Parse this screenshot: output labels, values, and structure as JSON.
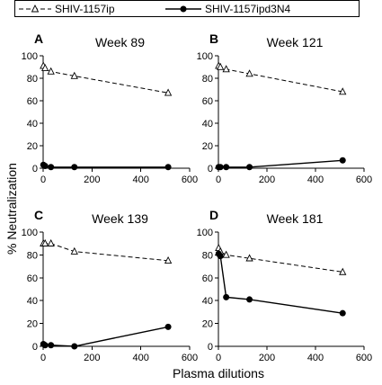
{
  "chart_data": {
    "type": "line",
    "legend": {
      "position": "top",
      "entries": [
        {
          "label": "SHIV-1157ip",
          "marker": "open-triangle",
          "line": "dashed"
        },
        {
          "label": "SHIV-1157ipd3N4",
          "marker": "filled-circle",
          "line": "solid"
        }
      ]
    },
    "xlabel": "Plasma dilutions",
    "ylabel": "% Neutralization",
    "xlim": [
      0,
      600
    ],
    "ylim": [
      0,
      100
    ],
    "xticks": [
      "0",
      "200",
      "400",
      "600"
    ],
    "yticks": [
      "0",
      "20",
      "40",
      "60",
      "80",
      "100"
    ],
    "panels": [
      {
        "letter": "A",
        "title": "Week 89",
        "series": [
          {
            "name": "SHIV-1157ip",
            "x": [
              1,
              8,
              32,
              128,
              512
            ],
            "y": [
              91,
              89,
              86,
              82,
              67
            ]
          },
          {
            "name": "SHIV-1157ipd3N4",
            "x": [
              1,
              8,
              32,
              128,
              512
            ],
            "y": [
              3,
              2,
              1,
              1,
              1
            ]
          }
        ]
      },
      {
        "letter": "B",
        "title": "Week 121",
        "series": [
          {
            "name": "SHIV-1157ip",
            "x": [
              1,
              8,
              32,
              128,
              512
            ],
            "y": [
              91,
              90,
              88,
              84,
              68
            ]
          },
          {
            "name": "SHIV-1157ipd3N4",
            "x": [
              1,
              8,
              32,
              128,
              512
            ],
            "y": [
              1,
              1,
              1,
              1,
              7
            ]
          }
        ]
      },
      {
        "letter": "C",
        "title": "Week 139",
        "series": [
          {
            "name": "SHIV-1157ip",
            "x": [
              1,
              8,
              32,
              128,
              512
            ],
            "y": [
              90,
              90,
              90,
              83,
              75
            ]
          },
          {
            "name": "SHIV-1157ipd3N4",
            "x": [
              1,
              8,
              32,
              128,
              512
            ],
            "y": [
              2,
              1,
              1,
              0,
              17
            ]
          }
        ]
      },
      {
        "letter": "D",
        "title": "Week 181",
        "series": [
          {
            "name": "SHIV-1157ip",
            "x": [
              1,
              8,
              32,
              128,
              512
            ],
            "y": [
              86,
              83,
              80,
              77,
              65
            ]
          },
          {
            "name": "SHIV-1157ipd3N4",
            "x": [
              1,
              8,
              32,
              128,
              512
            ],
            "y": [
              81,
              79,
              43,
              41,
              29
            ]
          }
        ]
      }
    ]
  }
}
